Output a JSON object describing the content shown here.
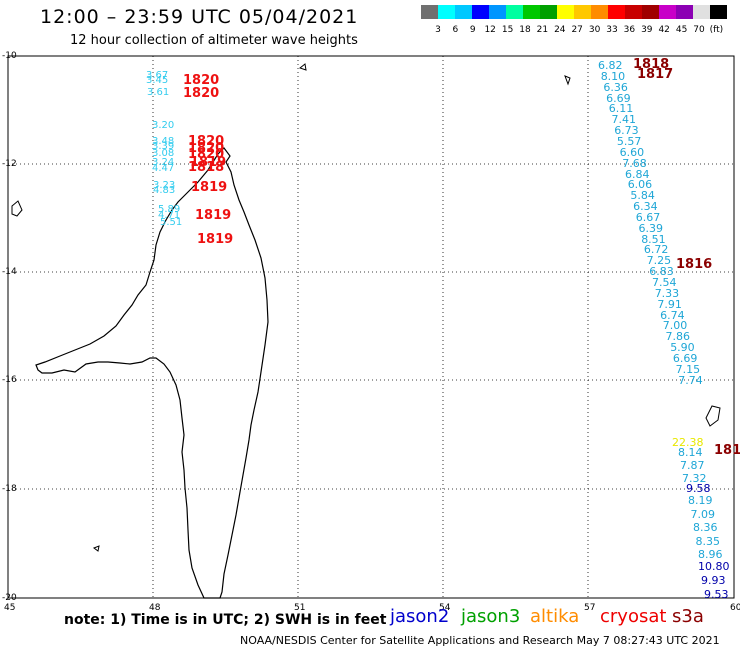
{
  "header": {
    "title": "12:00 – 23:59 UTC 05/04/2021",
    "subtitle": "12 hour collection of altimeter wave heights"
  },
  "color_scale": {
    "colors": [
      "#707070",
      "#00ffff",
      "#00c8ff",
      "#0000ff",
      "#0096ff",
      "#00ffa0",
      "#00c800",
      "#00a000",
      "#ffff00",
      "#ffc800",
      "#ff8c00",
      "#ff0000",
      "#c80000",
      "#a00000",
      "#c800c8",
      "#8c00b4",
      "#e0e0e0",
      "#000000"
    ],
    "labels": [
      "3",
      "6",
      "9",
      "12",
      "15",
      "18",
      "21",
      "24",
      "27",
      "30",
      "33",
      "36",
      "39",
      "42",
      "45",
      "70",
      "(ft)"
    ]
  },
  "axes": {
    "lat_labels": [
      "-10",
      "-12",
      "-14",
      "-16",
      "-18",
      "-20"
    ],
    "lon_labels": [
      "45",
      "48",
      "51",
      "54",
      "57",
      "60"
    ]
  },
  "tracks": [
    {
      "group": "west-cyan",
      "color": "#33ccee",
      "items": [
        "3.67",
        "3.45",
        "3.61",
        "3.20",
        "3.48",
        "3.39",
        "3.08",
        "3.24",
        "4.47",
        "3.23",
        "4.83",
        "5.89",
        "4.71",
        "5.51"
      ]
    },
    {
      "group": "west-red",
      "color": "#ee1111",
      "items": [
        "1820",
        "1820",
        "1820",
        "1820",
        "1820",
        "1819",
        "1818",
        "1819",
        "1819",
        "1819"
      ]
    },
    {
      "group": "east-track",
      "color": "#1fa6d6",
      "items": [
        "6.82",
        "8.10",
        "6.36",
        "6.69",
        "6.11",
        "7.41",
        "6.73",
        "5.57",
        "6.60",
        "7.68",
        "6.84",
        "6.06",
        "5.84",
        "6.34",
        "6.67",
        "6.39",
        "8.51",
        "6.72",
        "7.25",
        "6.83",
        "7.54",
        "7.33",
        "7.91",
        "6.74",
        "7.00",
        "7.86",
        "5.90",
        "6.69",
        "7.15",
        "7.74"
      ]
    },
    {
      "group": "east-yellow",
      "color": "#e8e800",
      "items": [
        "22.38"
      ]
    },
    {
      "group": "east-track-2",
      "color": "#1fa6d6",
      "items": [
        "8.14",
        "7.87",
        "7.32"
      ]
    },
    {
      "group": "east-blue",
      "color": "#0000aa",
      "items": [
        "9.58"
      ]
    },
    {
      "group": "east-track-3",
      "color": "#1fa6d6",
      "items": [
        "8.19",
        "7.09",
        "8.36",
        "8.35",
        "8.96"
      ]
    },
    {
      "group": "east-blue-2",
      "color": "#0000aa",
      "items": [
        "10.80",
        "9.93",
        "9.53"
      ]
    },
    {
      "group": "east-time",
      "color": "#8b0000",
      "items": [
        "1818",
        "1817",
        "1816",
        "181"
      ]
    }
  ],
  "footer": {
    "note": "note: 1) Time is in UTC; 2) SWH is in feet",
    "legend": [
      {
        "label": "jason2",
        "color": "#0000cc"
      },
      {
        "label": "jason3",
        "color": "#00a000"
      },
      {
        "label": "altika",
        "color": "#ff8c00"
      },
      {
        "label": "cryosat",
        "color": "#ee0000"
      },
      {
        "label": "s3a",
        "color": "#8b0000"
      }
    ],
    "credit": "NOAA/NESDIS Center for Satellite Applications and Research    May  7 08:27:43 UTC 2021"
  }
}
